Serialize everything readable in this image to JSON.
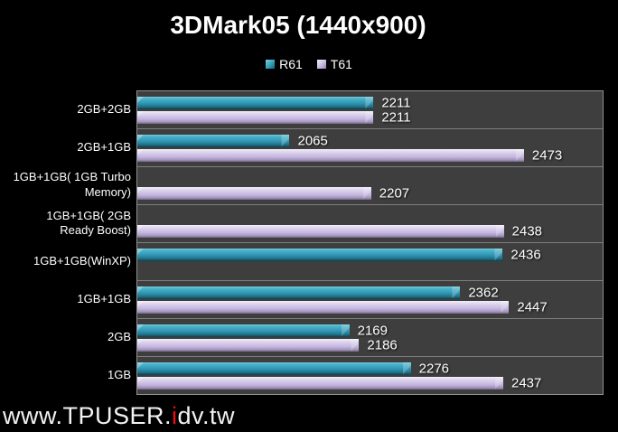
{
  "title": "3DMark05 (1440x900)",
  "legend": {
    "position": "top",
    "entries": [
      {
        "label": "R61",
        "marker": "teal-3d-square"
      },
      {
        "label": "T61",
        "marker": "lavender-3d-square"
      }
    ]
  },
  "watermark": {
    "prefix": "www.TPUSER.",
    "red_letter": "i",
    "suffix": "dv.tw"
  },
  "colors": {
    "background": "#000000",
    "plot_background": "#3e3e3e",
    "gridline": "#7e7e7e",
    "plot_border": "#909090",
    "series_r61": "#3aa2bd",
    "series_t61": "#cdc1e3",
    "text": "#ffffff",
    "watermark_red": "#ee1111"
  },
  "chart_data": {
    "type": "bar",
    "orientation": "horizontal",
    "title": "3DMark05 (1440x900)",
    "xlabel": "",
    "ylabel": "",
    "xlim": [
      1800,
      2610
    ],
    "grid": "category-separators-only",
    "value_labels": true,
    "legend_position": "top-center",
    "categories": [
      "2GB+2GB",
      "2GB+1GB",
      "1GB+1GB( 1GB Turbo Memory)",
      "1GB+1GB( 2GB Ready Boost)",
      "1GB+1GB(WinXP)",
      "1GB+1GB",
      "2GB",
      "1GB"
    ],
    "series": [
      {
        "name": "R61",
        "color": "#3aa2bd",
        "values": [
          2211,
          2065,
          null,
          null,
          2436,
          2362,
          2169,
          2276
        ]
      },
      {
        "name": "T61",
        "color": "#cdc1e3",
        "values": [
          2211,
          2473,
          2207,
          2438,
          null,
          2447,
          2186,
          2437
        ]
      }
    ]
  }
}
